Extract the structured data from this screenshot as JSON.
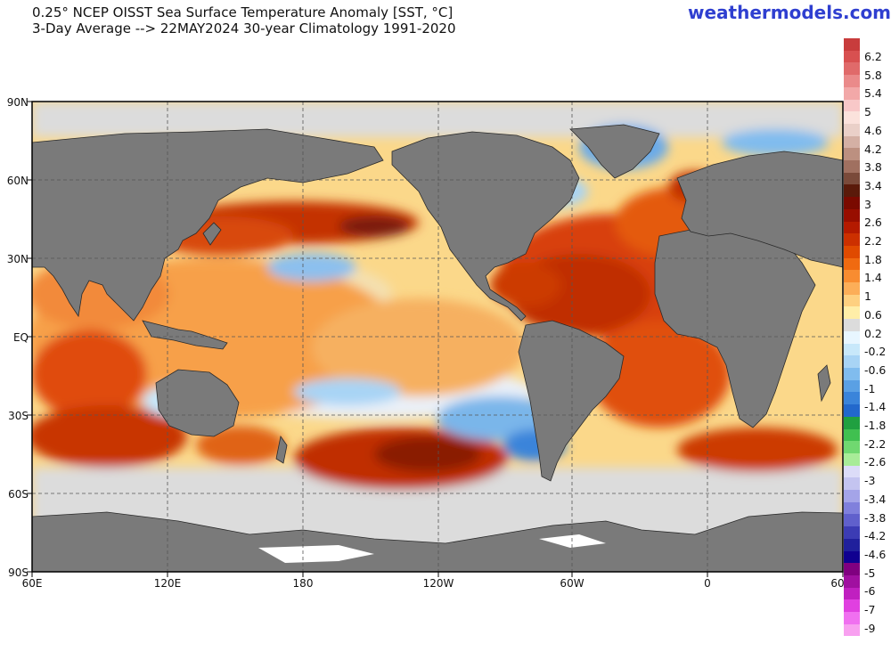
{
  "header": {
    "title_line1": "0.25° NCEP OISST Sea Surface Temperature Anomaly [SST, °C]",
    "title_line2": "3-Day Average --> 22MAY2024   30-year Climatology 1991-2020",
    "brand": "weathermodels.com"
  },
  "axes": {
    "lat_labels": [
      "90N",
      "60N",
      "30N",
      "EQ",
      "30S",
      "60S",
      "90S"
    ],
    "lon_labels": [
      "60E",
      "120E",
      "180",
      "120W",
      "60W",
      "0",
      "60"
    ]
  },
  "colorbar": {
    "labels": [
      "6.2",
      "5.8",
      "5.4",
      "5",
      "4.6",
      "4.2",
      "3.8",
      "3.4",
      "3",
      "2.6",
      "2.2",
      "1.8",
      "1.4",
      "1",
      "0.6",
      "0.2",
      "-0.2",
      "-0.6",
      "-1",
      "-1.4",
      "-1.8",
      "-2.2",
      "-2.6",
      "-3",
      "-3.4",
      "-3.8",
      "-4.2",
      "-4.6",
      "-5",
      "-6",
      "-7",
      "-9"
    ],
    "colors": [
      "#c83c3c",
      "#d85050",
      "#e06a6a",
      "#ea8a8a",
      "#f2a8a8",
      "#f8c8c8",
      "#fbe2dc",
      "#ead0c8",
      "#d4b0a4",
      "#bc9080",
      "#a07060",
      "#7a4a3a",
      "#5a1a0a",
      "#7a0a00",
      "#980e00",
      "#b41a00",
      "#cc3000",
      "#e04a00",
      "#f06a10",
      "#f88c30",
      "#fcae58",
      "#fed080",
      "#ffeea8",
      "#dcdcdc",
      "#e8f6ff",
      "#c8e8fa",
      "#a8d4f5",
      "#80bcee",
      "#5aa0e4",
      "#3a84da",
      "#2268cc",
      "#20a040",
      "#40c050",
      "#70d870",
      "#a8ec98",
      "#dcdcf8",
      "#c4c4f0",
      "#a4a4e8",
      "#8080dc",
      "#6060cc",
      "#3c3cb4",
      "#20209c",
      "#100090",
      "#800080",
      "#a010a0",
      "#c020c0",
      "#e040e0",
      "#f070f0",
      "#f8a0f0"
    ]
  },
  "map_legend": {
    "land_color": "#7a7a7a",
    "ice_color": "#ffffff",
    "neutral_ocean_color": "#d8d8d8"
  }
}
